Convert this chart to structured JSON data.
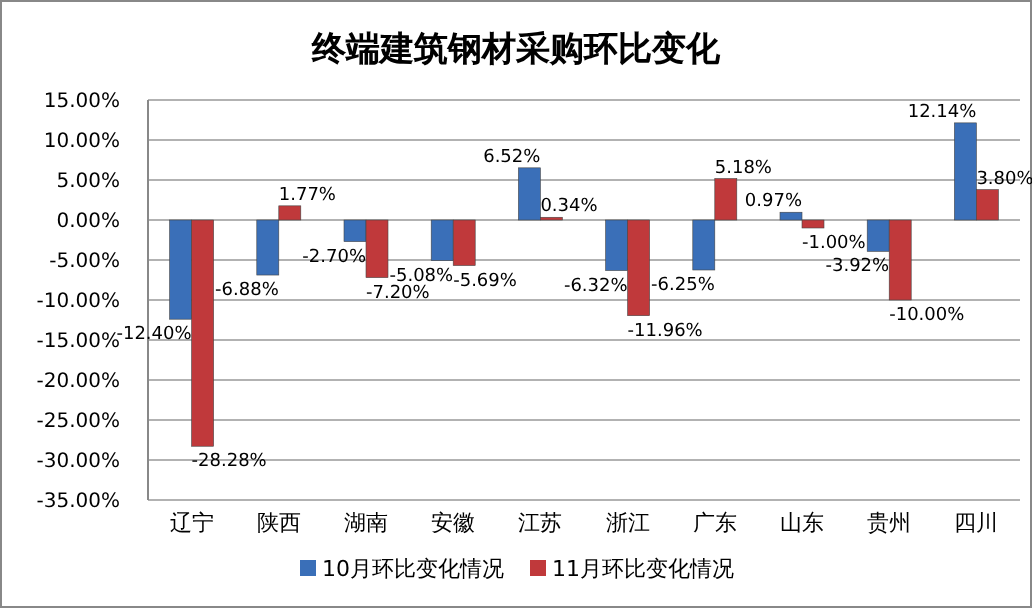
{
  "chart_data": {
    "type": "bar",
    "title": "终端建筑钢材采购环比变化",
    "categories": [
      "辽宁",
      "陕西",
      "湖南",
      "安徽",
      "江苏",
      "浙江",
      "广东",
      "山东",
      "贵州",
      "四川"
    ],
    "series": [
      {
        "name": "10月环比变化情况",
        "color": "#3a6fb8",
        "values": [
          -12.4,
          -6.88,
          -2.7,
          -5.08,
          6.52,
          -6.32,
          -6.25,
          0.97,
          -3.92,
          12.14
        ],
        "value_labels": [
          "-12.40%",
          "-6.88%",
          "-2.70%",
          "-5.08%",
          "6.52%",
          "-6.32%",
          "-6.25%",
          "0.97%",
          "-3.92%",
          "12.14%"
        ]
      },
      {
        "name": "11月环比变化情况",
        "color": "#c0393b",
        "values": [
          -28.28,
          1.77,
          -7.2,
          -5.69,
          0.34,
          -11.96,
          5.18,
          -1.0,
          -10.0,
          3.8
        ],
        "value_labels": [
          "-28.28%",
          "1.77%",
          "-7.20%",
          "-5.69%",
          "0.34%",
          "-11.96%",
          "5.18%",
          "-1.00%",
          "-10.00%",
          "3.80%"
        ]
      }
    ],
    "ylim": [
      -35,
      15
    ],
    "yticks": [
      {
        "value": 15,
        "label": "15.00%"
      },
      {
        "value": 10,
        "label": "10.00%"
      },
      {
        "value": 5,
        "label": "5.00%"
      },
      {
        "value": 0,
        "label": "0.00%"
      },
      {
        "value": -5,
        "label": "-5.00%"
      },
      {
        "value": -10,
        "label": "-10.00%"
      },
      {
        "value": -15,
        "label": "-15.00%"
      },
      {
        "value": -20,
        "label": "-20.00%"
      },
      {
        "value": -25,
        "label": "-25.00%"
      },
      {
        "value": -30,
        "label": "-30.00%"
      },
      {
        "value": -35,
        "label": "-35.00%"
      }
    ],
    "grid": "y",
    "legend": "bottom"
  }
}
